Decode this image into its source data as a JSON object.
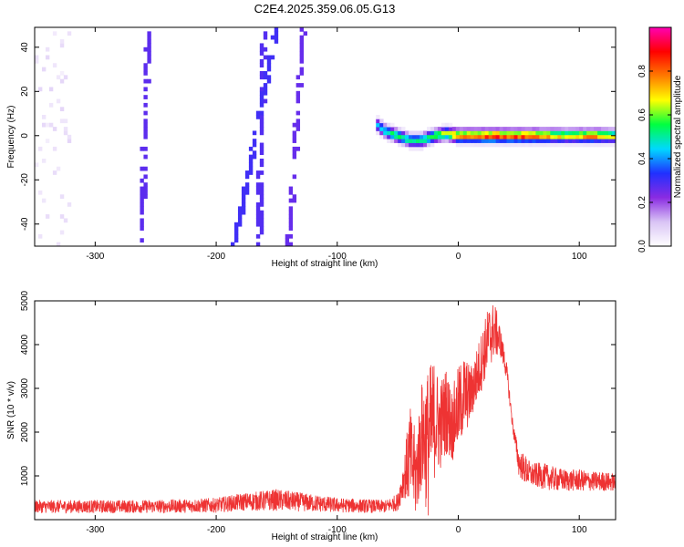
{
  "title": "C2E4.2025.359.06.05.G13",
  "chart_data": [
    {
      "type": "heatmap",
      "xlabel": "Height of straight line (km)",
      "ylabel": "Frequency (Hz)",
      "xlim": [
        -350,
        130
      ],
      "ylim": [
        -50,
        49
      ],
      "xticks": [
        -300,
        -200,
        -100,
        0,
        100
      ],
      "yticks": [
        -40,
        -20,
        0,
        20,
        40
      ],
      "colorbar": {
        "label": "Normalized spectral amplitude",
        "range": [
          0.0,
          1.0
        ],
        "ticks": [
          0.0,
          0.2,
          0.4,
          0.6,
          0.8
        ],
        "tick_labels": [
          "0.0",
          "0.2",
          "0.4",
          "0.6",
          "0.8"
        ],
        "colors": [
          "#ffffff",
          "#d9c4f5",
          "#8a2be2",
          "#2030ff",
          "#00d8ff",
          "#00ff40",
          "#ffff00",
          "#ff7a00",
          "#ff0000",
          "#ff00b4"
        ]
      },
      "noise_region_x": [
        -350,
        -65
      ],
      "noise_amplitude": 0.18,
      "streaks": [
        {
          "x_start": -262,
          "x_end": -256,
          "amplitude": 0.27
        },
        {
          "x_start": -185,
          "x_end": -150,
          "amplitude": 0.3
        },
        {
          "x_start": -165,
          "x_end": -160,
          "amplitude": 0.28
        },
        {
          "x_start": -140,
          "x_end": -128,
          "amplitude": 0.26
        }
      ],
      "signal_trace": [
        {
          "x": -67,
          "freq": 5,
          "amplitude": 0.45
        },
        {
          "x": -60,
          "freq": 2,
          "amplitude": 0.55
        },
        {
          "x": -50,
          "freq": 0,
          "amplitude": 0.6
        },
        {
          "x": -40,
          "freq": -2,
          "amplitude": 0.55
        },
        {
          "x": -30,
          "freq": -2,
          "amplitude": 0.6
        },
        {
          "x": -20,
          "freq": 0,
          "amplitude": 0.65
        },
        {
          "x": -10,
          "freq": 1,
          "amplitude": 0.7
        },
        {
          "x": 0,
          "freq": 0,
          "amplitude": 0.85
        },
        {
          "x": 30,
          "freq": 0,
          "amplitude": 0.95
        },
        {
          "x": 60,
          "freq": 0,
          "amplitude": 0.9
        },
        {
          "x": 90,
          "freq": 0,
          "amplitude": 0.75
        },
        {
          "x": 110,
          "freq": 0,
          "amplitude": 0.85
        },
        {
          "x": 130,
          "freq": 0,
          "amplitude": 0.7
        }
      ]
    },
    {
      "type": "line",
      "xlabel": "Height of straight line (km)",
      "ylabel": "SNR (10 * v/v)",
      "xlim": [
        -350,
        130
      ],
      "ylim": [
        0,
        5000
      ],
      "xticks": [
        -300,
        -200,
        -100,
        0,
        100
      ],
      "yticks": [
        1000,
        2000,
        3000,
        4000,
        5000
      ],
      "color": "#ee3333",
      "envelope": {
        "x": [
          -350,
          -300,
          -250,
          -200,
          -180,
          -150,
          -100,
          -60,
          -50,
          -45,
          -40,
          -35,
          -30,
          -25,
          -20,
          -15,
          -10,
          -5,
          0,
          5,
          10,
          15,
          20,
          25,
          30,
          35,
          40,
          45,
          50,
          55,
          60,
          70,
          80,
          90,
          100,
          110,
          120,
          130
        ],
        "low": [
          150,
          150,
          150,
          160,
          200,
          200,
          160,
          150,
          200,
          500,
          300,
          0,
          700,
          0,
          900,
          1100,
          1500,
          1300,
          1600,
          1900,
          2200,
          2600,
          3000,
          3400,
          3700,
          3700,
          3200,
          2000,
          1000,
          800,
          750,
          700,
          650,
          650,
          650,
          650,
          650,
          650
        ],
        "high": [
          450,
          450,
          450,
          500,
          600,
          700,
          500,
          450,
          600,
          1400,
          2600,
          2000,
          3200,
          3500,
          3700,
          3200,
          3500,
          3000,
          3500,
          3800,
          3500,
          3900,
          4400,
          4900,
          5000,
          4400,
          3600,
          2300,
          1600,
          1500,
          1300,
          1300,
          1200,
          1150,
          1150,
          1100,
          1100,
          1050
        ]
      }
    }
  ]
}
